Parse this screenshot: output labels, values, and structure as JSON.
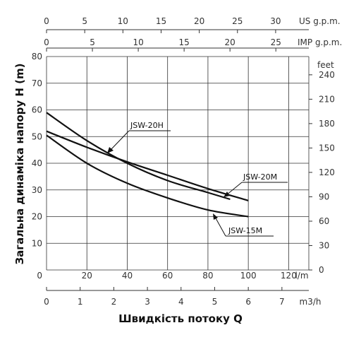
{
  "chart_data": {
    "type": "line",
    "ylabel": "Загальна динаміка напору H (m)",
    "xlabel": "Швидкість потоку Q",
    "primary_x": {
      "unit": "l/m",
      "range": [
        0,
        130
      ],
      "ticks": [
        0,
        20,
        40,
        60,
        80,
        100,
        120
      ]
    },
    "primary_y": {
      "unit": "m",
      "range": [
        0,
        80
      ],
      "ticks": [
        0,
        10,
        20,
        30,
        40,
        50,
        60,
        70,
        80
      ]
    },
    "top_axis_us": {
      "unit": "US g.p.m.",
      "ticks": [
        0,
        5,
        10,
        15,
        20,
        25,
        30
      ]
    },
    "top_axis_imp": {
      "unit": "IMP g.p.m.",
      "ticks": [
        0,
        5,
        10,
        15,
        20,
        25
      ]
    },
    "bottom_axis_m3h": {
      "unit": "m3/h",
      "ticks": [
        0,
        1,
        2,
        3,
        4,
        5,
        6,
        7
      ]
    },
    "right_axis_feet": {
      "unit": "feet",
      "ticks": [
        0,
        30,
        60,
        90,
        120,
        150,
        180,
        210,
        240
      ]
    },
    "grid": true,
    "series": [
      {
        "name": "JSW-20H",
        "x": [
          0,
          20,
          40,
          60,
          80,
          91
        ],
        "y": [
          59,
          48.5,
          40,
          33.5,
          29,
          26.5
        ]
      },
      {
        "name": "JSW-20M",
        "x": [
          0,
          20,
          40,
          60,
          80,
          100
        ],
        "y": [
          52,
          46,
          40.5,
          35.5,
          30.5,
          26
        ]
      },
      {
        "name": "JSW-15M",
        "x": [
          0,
          20,
          40,
          60,
          80,
          100
        ],
        "y": [
          50.5,
          40,
          32.5,
          27,
          22.5,
          20
        ]
      }
    ],
    "labels": {
      "JSW-20H": "JSW-20H",
      "JSW-20M": "JSW-20M",
      "JSW-15M": "JSW-15M"
    }
  }
}
